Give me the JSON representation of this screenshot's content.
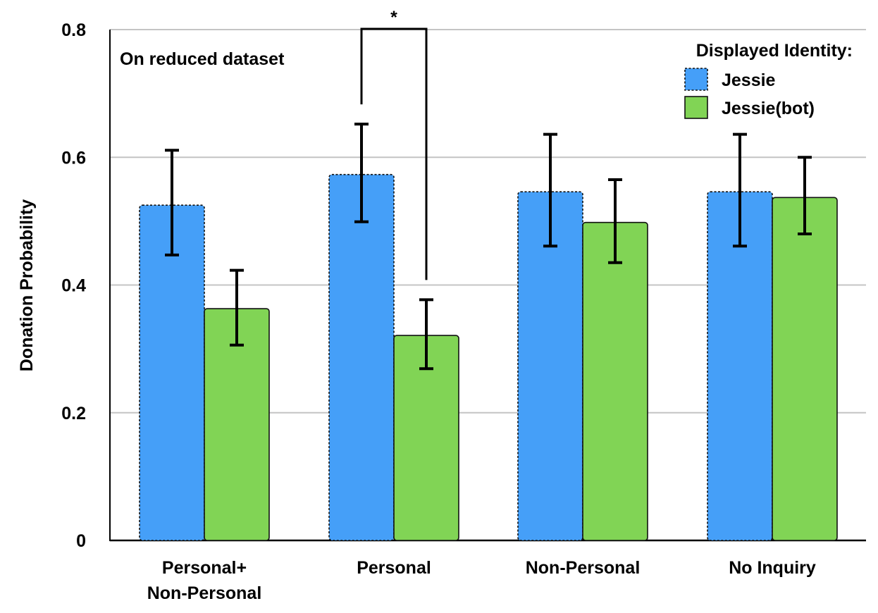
{
  "chart_data": {
    "type": "bar",
    "annotation": "On reduced dataset",
    "xlabel": "",
    "ylabel": "Donation Probability",
    "ylim": [
      0,
      0.8
    ],
    "yticks": [
      {
        "value": 0,
        "label": "0"
      },
      {
        "value": 0.2,
        "label": "0.2"
      },
      {
        "value": 0.4,
        "label": "0.4"
      },
      {
        "value": 0.6,
        "label": "0.6"
      },
      {
        "value": 0.8,
        "label": "0.8"
      }
    ],
    "grid": true,
    "categories": [
      [
        "Personal+",
        "Non-Personal"
      ],
      [
        "Personal"
      ],
      [
        "Non-Personal"
      ],
      [
        "No Inquiry"
      ]
    ],
    "legend": {
      "title": "Displayed Identity:",
      "position": "top-right"
    },
    "series": [
      {
        "name": "Jessie",
        "color": "#459ff8",
        "border": "dotted",
        "values": [
          0.525,
          0.573,
          0.546,
          0.546
        ],
        "err_low": [
          0.447,
          0.499,
          0.461,
          0.461
        ],
        "err_high": [
          0.611,
          0.652,
          0.636,
          0.636
        ]
      },
      {
        "name": "Jessie(bot)",
        "color": "#81d455",
        "border": "solid",
        "values": [
          0.363,
          0.321,
          0.498,
          0.537
        ],
        "err_low": [
          0.306,
          0.269,
          0.435,
          0.48
        ],
        "err_high": [
          0.423,
          0.377,
          0.565,
          0.6
        ]
      }
    ],
    "significance": [
      {
        "category_index": 1,
        "label": "*"
      }
    ]
  }
}
